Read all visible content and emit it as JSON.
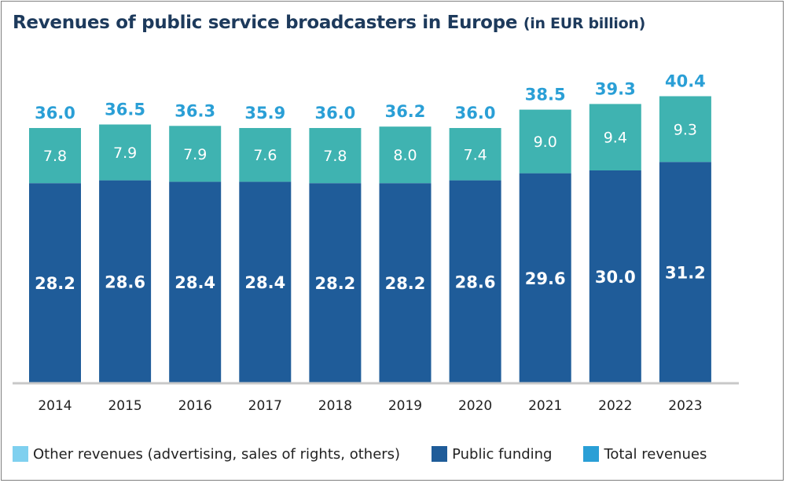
{
  "title": {
    "main": "Revenues of public service broadcasters in Europe",
    "unit": "(in EUR billion)"
  },
  "colors": {
    "public_funding": "#1f5c99",
    "other_revenues_bar": "#3fb3b1",
    "total_label": "#2a9fd6",
    "legend_other": "#7fd0ef",
    "legend_public": "#1f5c99",
    "legend_total": "#2a9fd6",
    "axis": "#c8c8c8",
    "title": "#1d3a5c"
  },
  "legend": {
    "items": [
      {
        "label": "Other revenues (advertising, sales of rights, others)",
        "color": "#7fd0ef"
      },
      {
        "label": "Public funding",
        "color": "#1f5c99"
      },
      {
        "label": "Total revenues",
        "color": "#2a9fd6"
      }
    ]
  },
  "chart_data": {
    "type": "bar",
    "stacked": true,
    "title": "Revenues of public service broadcasters in Europe (in EUR billion)",
    "categories": [
      "2014",
      "2015",
      "2016",
      "2017",
      "2018",
      "2019",
      "2020",
      "2021",
      "2022",
      "2023"
    ],
    "series": [
      {
        "name": "Public funding",
        "values": [
          28.2,
          28.6,
          28.4,
          28.4,
          28.2,
          28.2,
          28.6,
          29.6,
          30.0,
          31.2
        ]
      },
      {
        "name": "Other revenues (advertising, sales of rights, others)",
        "values": [
          7.8,
          7.9,
          7.9,
          7.6,
          7.8,
          8.0,
          7.4,
          9.0,
          9.4,
          9.3
        ]
      }
    ],
    "totals": {
      "name": "Total revenues",
      "labels": [
        "36.0",
        "36.5",
        "36.3",
        "35.9",
        "36.0",
        "36.2",
        "36.0",
        "38.5",
        "39.3",
        "40.4"
      ],
      "values": [
        36.0,
        36.5,
        36.3,
        35.9,
        36.0,
        36.2,
        36.0,
        38.5,
        39.3,
        40.4
      ]
    },
    "value_labels": {
      "public_funding": [
        "28.2",
        "28.6",
        "28.4",
        "28.4",
        "28.2",
        "28.2",
        "28.6",
        "29.6",
        "30.0",
        "31.2"
      ],
      "other_revenues": [
        "7.8",
        "7.9",
        "7.9",
        "7.6",
        "7.8",
        "8.0",
        "7.4",
        "9.0",
        "9.4",
        "9.3"
      ]
    },
    "ylim": [
      0,
      40.4
    ],
    "grid": false,
    "legend_position": "bottom"
  }
}
